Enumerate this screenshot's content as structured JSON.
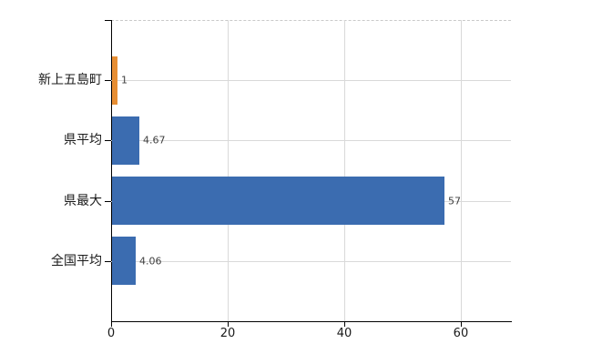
{
  "chart_data": {
    "type": "bar",
    "orientation": "horizontal",
    "title": "",
    "categories": [
      "新上五島町",
      "県平均",
      "県最大",
      "全国平均"
    ],
    "values": [
      1,
      4.67,
      57,
      4.06
    ],
    "value_labels": [
      "1",
      "4.67",
      "57",
      "4.06"
    ],
    "bar_colors": [
      "#e78e33",
      "#3b6cb0",
      "#3b6cb0",
      "#3b6cb0"
    ],
    "xticks": [
      0,
      20,
      40,
      60
    ],
    "xtick_labels": [
      "0",
      "20",
      "40",
      "60"
    ],
    "xlim": [
      0,
      68.6
    ],
    "grid": true,
    "legend": false
  },
  "colors": {
    "background": "#ffffff",
    "bar_blue": "#3b6cb0",
    "bar_orange": "#e78e33",
    "gridline": "#d9d9d9",
    "plot_top_border": "#c9c9c9",
    "axis_line": "#000000",
    "value_label_text": "#404040",
    "tick_label_text": "#1a1a1a"
  }
}
